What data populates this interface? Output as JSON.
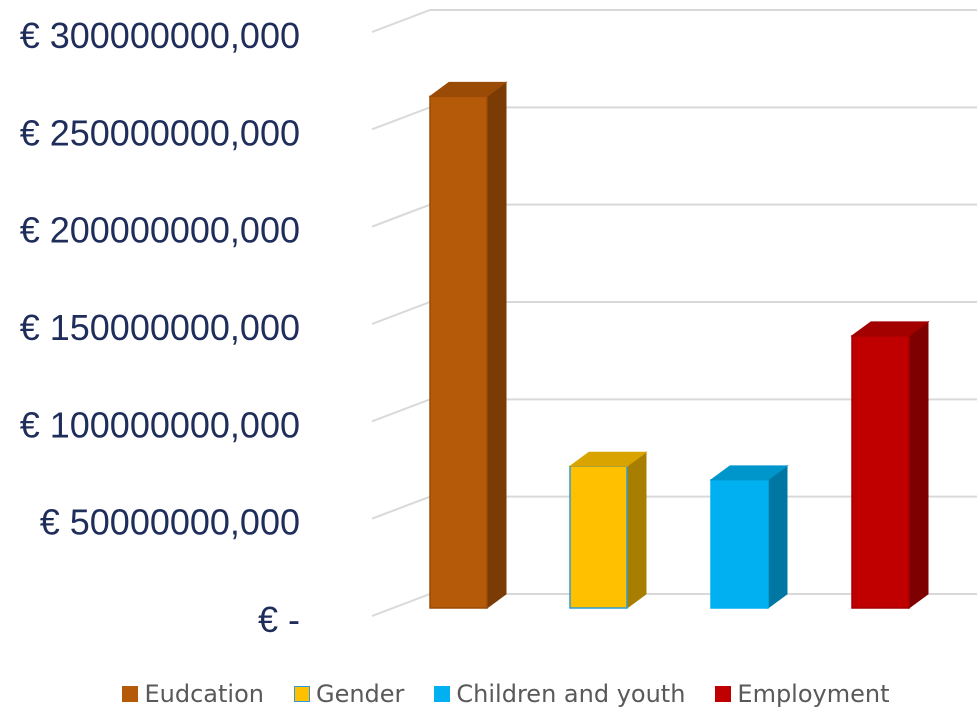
{
  "chart_data": {
    "type": "bar",
    "categories": [
      "Eudcation",
      "Gender",
      "Children and youth",
      "Employment"
    ],
    "series": [
      {
        "name": "Eudcation",
        "values": [
          270000000,
          null,
          null,
          null
        ]
      },
      {
        "name": "Gender",
        "values": [
          null,
          80000000,
          null,
          null
        ]
      },
      {
        "name": "Children and youth",
        "values": [
          null,
          null,
          73000000,
          null
        ]
      },
      {
        "name": "Employment",
        "values": [
          null,
          null,
          null,
          147000000
        ]
      }
    ],
    "values": [
      270000000,
      80000000,
      73000000,
      147000000
    ],
    "ylim": [
      0,
      300000000
    ],
    "yticks": [
      {
        "value": 0,
        "label": "€ -"
      },
      {
        "value": 50000000,
        "label": "€ 50000000,000"
      },
      {
        "value": 100000000,
        "label": "€ 100000000,000"
      },
      {
        "value": 150000000,
        "label": "€ 150000000,000"
      },
      {
        "value": 200000000,
        "label": "€ 200000000,000"
      },
      {
        "value": 250000000,
        "label": "€ 250000000,000"
      },
      {
        "value": 300000000,
        "label": "€ 300000000,000"
      }
    ],
    "title": "",
    "xlabel": "",
    "ylabel": "",
    "grid": true,
    "legend_position": "bottom",
    "three_d": true,
    "colors": {
      "front": [
        "#B45A08",
        "#FFC000",
        "#00B0F0",
        "#C00000"
      ],
      "side": [
        "#7A3B04",
        "#A87E00",
        "#0076A3",
        "#7F0000"
      ],
      "top": [
        "#9A4C06",
        "#D9A300",
        "#0096CC",
        "#A30000"
      ],
      "outline": [
        "#9A4C06",
        "#2E9BD6",
        "#00B0F0",
        "#A30000"
      ],
      "axis_text": "#1F2D5A",
      "gridline": "#D9D9D9",
      "legend_text": "#595959"
    }
  }
}
